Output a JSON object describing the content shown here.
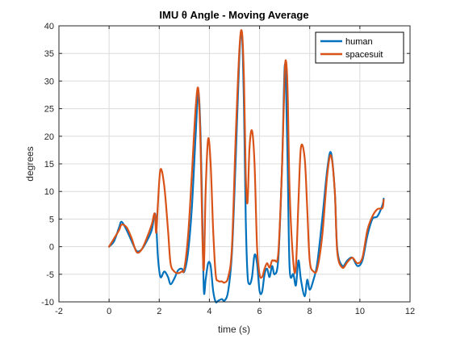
{
  "chart_data": {
    "type": "line",
    "title": "IMU θ Angle - Moving Average",
    "xlabel": "time (s)",
    "ylabel": "degrees",
    "xlim": [
      -2,
      12
    ],
    "ylim": [
      -10,
      40
    ],
    "xticks": [
      -2,
      0,
      2,
      4,
      6,
      8,
      10,
      12
    ],
    "yticks": [
      -10,
      -5,
      0,
      5,
      10,
      15,
      20,
      25,
      30,
      35,
      40
    ],
    "xtick_labels": [
      "-2",
      "0",
      "2",
      "4",
      "6",
      "8",
      "10",
      "12"
    ],
    "ytick_labels": [
      "-10",
      "-5",
      "0",
      "5",
      "10",
      "15",
      "20",
      "25",
      "30",
      "35",
      "40"
    ],
    "grid": true,
    "legend_position": "top-right",
    "series": [
      {
        "name": "human",
        "color": "#0072BD",
        "x": [
          0,
          0.2,
          0.4,
          0.5,
          0.7,
          0.9,
          1.1,
          1.3,
          1.5,
          1.7,
          1.82,
          1.88,
          1.95,
          2.05,
          2.2,
          2.35,
          2.45,
          2.6,
          2.75,
          2.9,
          3.0,
          3.15,
          3.3,
          3.45,
          3.56,
          3.65,
          3.72,
          3.78,
          3.85,
          3.95,
          4.05,
          4.15,
          4.25,
          4.35,
          4.5,
          4.6,
          4.75,
          4.9,
          5.05,
          5.2,
          5.3,
          5.38,
          5.45,
          5.52,
          5.6,
          5.7,
          5.8,
          5.9,
          6.0,
          6.1,
          6.2,
          6.3,
          6.4,
          6.5,
          6.6,
          6.75,
          6.9,
          7.0,
          7.06,
          7.12,
          7.2,
          7.35,
          7.45,
          7.55,
          7.65,
          7.8,
          7.9,
          8.0,
          8.15,
          8.3,
          8.5,
          8.7,
          8.85,
          9.0,
          9.1,
          9.3,
          9.5,
          9.7,
          9.9,
          10.1,
          10.3,
          10.5,
          10.7,
          10.9,
          10.95
        ],
        "y": [
          0,
          1,
          3.5,
          4.5,
          3,
          1,
          -0.8,
          -0.5,
          1,
          3,
          6,
          4,
          -2,
          -5.5,
          -4.5,
          -5.5,
          -6.8,
          -5.8,
          -4.3,
          -4,
          -4.5,
          -1,
          7,
          20,
          28,
          20,
          5,
          -8,
          -6,
          -3,
          -3.5,
          -8,
          -10,
          -9.8,
          -9.5,
          -9.8,
          -8,
          -1,
          16,
          35,
          38.5,
          25,
          5,
          -5,
          -6.8,
          -5.5,
          -1.5,
          -3,
          -8,
          -8.2,
          -5,
          -4,
          -5.5,
          -3.5,
          -5,
          -2,
          15,
          32.5,
          28,
          15,
          -4,
          -5,
          -7,
          -2.5,
          -6,
          -9,
          -6,
          -7.8,
          -6,
          -3,
          5,
          14,
          17,
          10,
          -0.5,
          -3.5,
          -2.5,
          -2,
          -3.5,
          -2.5,
          2,
          5,
          5.5,
          7.5,
          8.7
        ]
      },
      {
        "name": "spacesuit",
        "color": "#D95319",
        "x": [
          0,
          0.2,
          0.4,
          0.5,
          0.7,
          0.9,
          1.1,
          1.3,
          1.5,
          1.7,
          1.82,
          1.88,
          1.95,
          2.05,
          2.2,
          2.35,
          2.45,
          2.6,
          2.75,
          2.9,
          3.0,
          3.15,
          3.3,
          3.45,
          3.56,
          3.65,
          3.72,
          3.78,
          3.85,
          3.95,
          4.05,
          4.15,
          4.25,
          4.35,
          4.5,
          4.6,
          4.75,
          4.9,
          5.05,
          5.2,
          5.3,
          5.38,
          5.45,
          5.52,
          5.6,
          5.7,
          5.8,
          5.9,
          6.0,
          6.1,
          6.2,
          6.3,
          6.4,
          6.5,
          6.6,
          6.75,
          6.9,
          7.0,
          7.06,
          7.12,
          7.2,
          7.35,
          7.45,
          7.55,
          7.65,
          7.8,
          7.9,
          8.0,
          8.15,
          8.3,
          8.5,
          8.7,
          8.85,
          9.0,
          9.1,
          9.3,
          9.5,
          9.7,
          9.9,
          10.1,
          10.3,
          10.5,
          10.7,
          10.9,
          10.95
        ],
        "y": [
          0,
          1.5,
          3,
          4,
          3.5,
          1.5,
          -1,
          -0.5,
          1.5,
          4,
          6,
          2.5,
          8,
          14,
          11,
          3,
          -3,
          -4.5,
          -4.8,
          -4.5,
          -4,
          2,
          13,
          25,
          28.5,
          18,
          2,
          -4,
          10,
          19.5,
          15,
          3,
          -5,
          -6.2,
          -6.3,
          -6.5,
          -5.5,
          0,
          20,
          36,
          38.8,
          30,
          13,
          8,
          18,
          21,
          15,
          0,
          -5,
          -5.5,
          -4,
          -3,
          -3.8,
          -2.5,
          -2.5,
          -1,
          15,
          31,
          33.5,
          28,
          10,
          -3,
          -3.5,
          8,
          18,
          16,
          7,
          -2.5,
          -4.5,
          -4,
          2,
          13,
          16.5,
          10,
          -1,
          -3.8,
          -2.8,
          -2,
          -3,
          -2,
          3,
          5.5,
          6.8,
          7,
          8.5
        ]
      }
    ]
  }
}
